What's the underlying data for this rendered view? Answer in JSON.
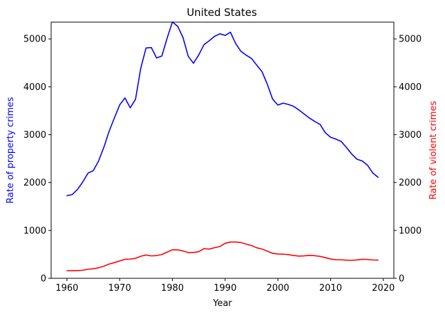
{
  "chart_data": {
    "type": "line",
    "title": "United States",
    "xlabel": "Year",
    "ylabel_left": "Rate of property crimes",
    "ylabel_right": "Rate of violent crimes",
    "xlim": [
      1957,
      2022
    ],
    "ylim_left": [
      0,
      5350
    ],
    "ylim_right": [
      0,
      5350
    ],
    "x_ticks": [
      1960,
      1970,
      1980,
      1990,
      2000,
      2010,
      2020
    ],
    "y_ticks": [
      0,
      1000,
      2000,
      3000,
      4000,
      5000
    ],
    "grid": false,
    "x": [
      1960,
      1961,
      1962,
      1963,
      1964,
      1965,
      1966,
      1967,
      1968,
      1969,
      1970,
      1971,
      1972,
      1973,
      1974,
      1975,
      1976,
      1977,
      1978,
      1979,
      1980,
      1981,
      1982,
      1983,
      1984,
      1985,
      1986,
      1987,
      1988,
      1989,
      1990,
      1991,
      1992,
      1993,
      1994,
      1995,
      1996,
      1997,
      1998,
      1999,
      2000,
      2001,
      2002,
      2003,
      2004,
      2005,
      2006,
      2007,
      2008,
      2009,
      2010,
      2011,
      2012,
      2013,
      2014,
      2015,
      2016,
      2017,
      2018,
      2019
    ],
    "series": [
      {
        "name": "Rate of property crimes",
        "axis": "left",
        "color": "#0000ff",
        "values": [
          1726,
          1748,
          1857,
          2012,
          2198,
          2249,
          2451,
          2737,
          3071,
          3351,
          3621,
          3768,
          3561,
          3737,
          4389,
          4811,
          4820,
          4601,
          4643,
          5017,
          5353,
          5264,
          5032,
          4637,
          4492,
          4666,
          4881,
          4963,
          5054,
          5107,
          5073,
          5140,
          4903,
          4740,
          4660,
          4591,
          4451,
          4316,
          4052,
          3744,
          3618,
          3658,
          3631,
          3591,
          3515,
          3431,
          3346,
          3276,
          3215,
          3041,
          2946,
          2908,
          2860,
          2733,
          2596,
          2487,
          2451,
          2362,
          2200,
          2110
        ]
      },
      {
        "name": "Rate of violent crimes",
        "axis": "right",
        "color": "#ff0000",
        "values": [
          161,
          158,
          162,
          168,
          190,
          200,
          220,
          253,
          298,
          328,
          364,
          396,
          401,
          417,
          461,
          487,
          468,
          475,
          497,
          548,
          597,
          594,
          571,
          538,
          539,
          556,
          620,
          610,
          640,
          663,
          731,
          758,
          758,
          747,
          714,
          685,
          637,
          611,
          568,
          523,
          507,
          504,
          494,
          476,
          463,
          469,
          480,
          472,
          458,
          431,
          404,
          387,
          387,
          379,
          376,
          384,
          398,
          394,
          383,
          380
        ]
      }
    ]
  }
}
